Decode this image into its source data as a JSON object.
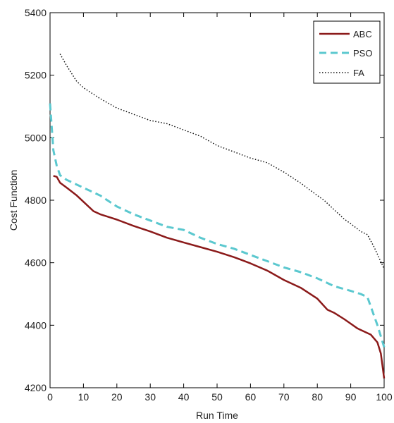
{
  "chart_data": {
    "type": "line",
    "title": "",
    "xlabel": "Run Time",
    "ylabel": "Cost Function",
    "xlim": [
      0,
      100
    ],
    "ylim": [
      4200,
      5400
    ],
    "xticks": [
      0,
      10,
      20,
      30,
      40,
      50,
      60,
      70,
      80,
      90,
      100
    ],
    "yticks": [
      4200,
      4400,
      4600,
      4800,
      5000,
      5200,
      5400
    ],
    "xtick_labels": [
      "0",
      "10",
      "20",
      "30",
      "40",
      "50",
      "60",
      "70",
      "80",
      "90",
      "100"
    ],
    "ytick_labels": [
      "4200",
      "4400",
      "4600",
      "4800",
      "5000",
      "5200",
      "5400"
    ],
    "grid": false,
    "legend_position": "top-right",
    "series": [
      {
        "name": "ABC",
        "color": "#8b1a1a",
        "style": "solid",
        "x": [
          1,
          2,
          3,
          5,
          8,
          10,
          13,
          15,
          18,
          20,
          25,
          30,
          35,
          40,
          45,
          50,
          55,
          57,
          60,
          65,
          70,
          75,
          80,
          83,
          85,
          88,
          90,
          92,
          94,
          96,
          98,
          99,
          100
        ],
        "y": [
          4878,
          4875,
          4856,
          4840,
          4815,
          4795,
          4765,
          4755,
          4745,
          4738,
          4718,
          4700,
          4680,
          4665,
          4650,
          4635,
          4618,
          4610,
          4598,
          4575,
          4545,
          4520,
          4485,
          4450,
          4440,
          4420,
          4405,
          4390,
          4380,
          4370,
          4345,
          4310,
          4230
        ]
      },
      {
        "name": "PSO",
        "color": "#5bc8cf",
        "style": "dashed",
        "x": [
          0,
          1,
          2,
          3,
          5,
          10,
          15,
          20,
          25,
          30,
          35,
          40,
          45,
          50,
          55,
          60,
          65,
          70,
          75,
          80,
          85,
          90,
          93,
          95,
          96,
          98,
          100
        ],
        "y": [
          5110,
          4960,
          4910,
          4880,
          4865,
          4840,
          4815,
          4780,
          4755,
          4735,
          4715,
          4705,
          4680,
          4660,
          4645,
          4625,
          4605,
          4585,
          4570,
          4550,
          4525,
          4510,
          4500,
          4490,
          4460,
          4400,
          4330
        ]
      },
      {
        "name": "FA",
        "color": "#111111",
        "style": "dotted",
        "x": [
          3,
          5,
          8,
          10,
          15,
          20,
          25,
          30,
          35,
          40,
          45,
          50,
          55,
          60,
          65,
          70,
          75,
          80,
          82,
          85,
          88,
          90,
          93,
          95,
          97,
          100
        ],
        "y": [
          5268,
          5230,
          5180,
          5160,
          5125,
          5095,
          5075,
          5055,
          5045,
          5025,
          5005,
          4975,
          4955,
          4935,
          4920,
          4890,
          4855,
          4815,
          4800,
          4770,
          4740,
          4725,
          4700,
          4690,
          4650,
          4580
        ]
      }
    ]
  }
}
